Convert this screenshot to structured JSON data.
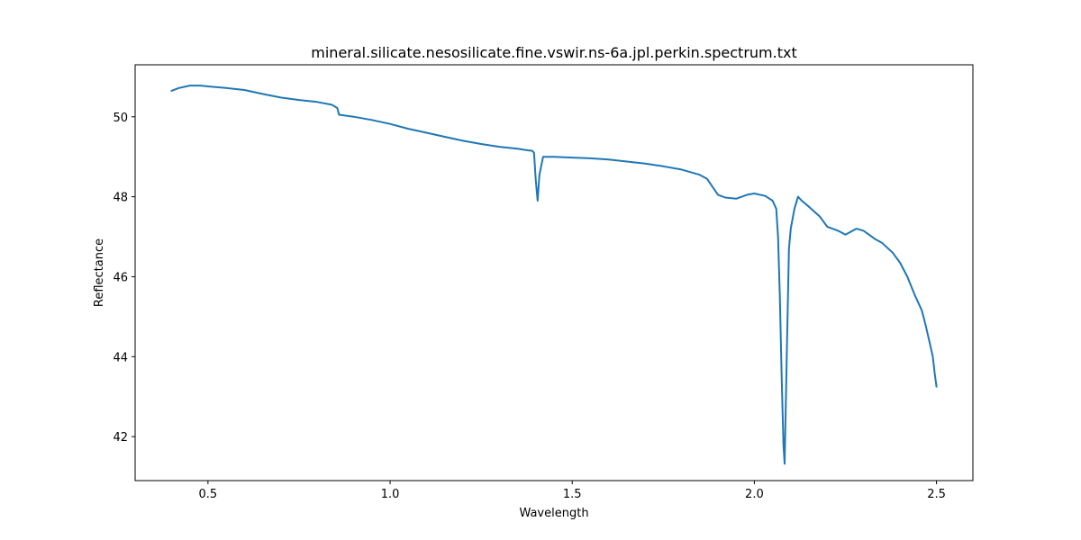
{
  "chart_data": {
    "type": "line",
    "title": "mineral.silicate.nesosilicate.fine.vswir.ns-6a.jpl.perkin.spectrum.txt",
    "xlabel": "Wavelength",
    "ylabel": "Reflectance",
    "xlim": [
      0.3,
      2.6
    ],
    "ylim": [
      40.9,
      51.3
    ],
    "xticks": [
      0.5,
      1.0,
      1.5,
      2.0,
      2.5
    ],
    "xtick_labels": [
      "0.5",
      "1.0",
      "1.5",
      "2.0",
      "2.5"
    ],
    "yticks": [
      42,
      44,
      46,
      48,
      50
    ],
    "ytick_labels": [
      "42",
      "44",
      "46",
      "48",
      "50"
    ],
    "grid": false,
    "series": [
      {
        "color": "#1f77b4",
        "x": [
          0.4,
          0.42,
          0.45,
          0.48,
          0.5,
          0.55,
          0.6,
          0.65,
          0.7,
          0.75,
          0.8,
          0.84,
          0.855,
          0.86,
          0.9,
          0.95,
          1.0,
          1.05,
          1.1,
          1.15,
          1.2,
          1.25,
          1.3,
          1.35,
          1.38,
          1.39,
          1.395,
          1.4,
          1.405,
          1.41,
          1.42,
          1.45,
          1.5,
          1.55,
          1.6,
          1.65,
          1.7,
          1.75,
          1.8,
          1.85,
          1.87,
          1.9,
          1.92,
          1.95,
          1.98,
          2.0,
          2.03,
          2.05,
          2.06,
          2.065,
          2.07,
          2.075,
          2.08,
          2.083,
          2.09,
          2.095,
          2.1,
          2.11,
          2.12,
          2.13,
          2.15,
          2.18,
          2.2,
          2.23,
          2.25,
          2.28,
          2.3,
          2.33,
          2.35,
          2.38,
          2.4,
          2.42,
          2.44,
          2.46,
          2.47,
          2.48,
          2.49,
          2.495,
          2.5
        ],
        "y": [
          50.65,
          50.72,
          50.78,
          50.78,
          50.76,
          50.72,
          50.67,
          50.57,
          50.48,
          50.42,
          50.37,
          50.3,
          50.22,
          50.05,
          50.0,
          49.92,
          49.82,
          49.7,
          49.6,
          49.5,
          49.4,
          49.32,
          49.25,
          49.2,
          49.16,
          49.15,
          49.1,
          48.4,
          47.9,
          48.55,
          49.0,
          49.0,
          48.98,
          48.96,
          48.93,
          48.88,
          48.83,
          48.76,
          48.68,
          48.55,
          48.45,
          48.05,
          47.98,
          47.95,
          48.05,
          48.08,
          48.02,
          47.9,
          47.7,
          47.0,
          45.5,
          43.5,
          41.8,
          41.32,
          44.5,
          46.7,
          47.2,
          47.7,
          48.0,
          47.9,
          47.75,
          47.5,
          47.25,
          47.15,
          47.05,
          47.2,
          47.15,
          46.95,
          46.85,
          46.6,
          46.35,
          46.0,
          45.55,
          45.15,
          44.8,
          44.4,
          44.0,
          43.6,
          43.25
        ]
      }
    ]
  }
}
